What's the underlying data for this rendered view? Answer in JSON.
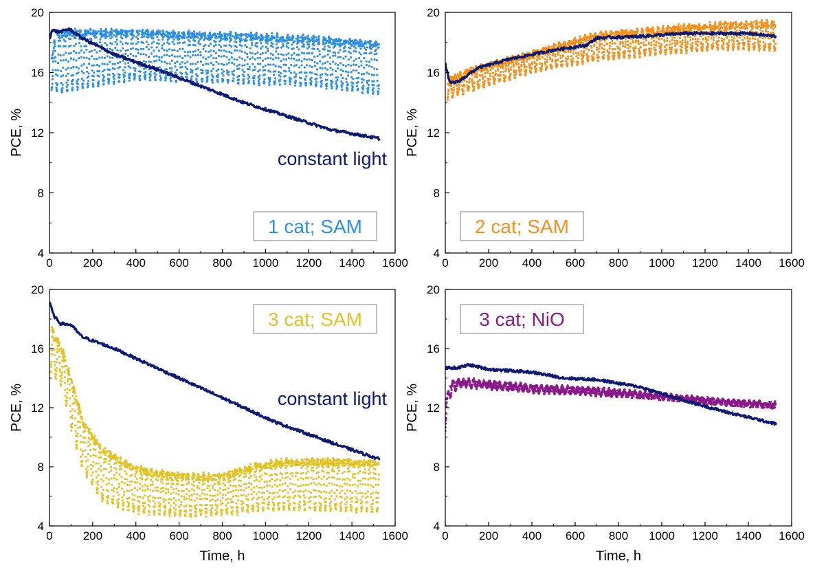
{
  "colors": {
    "constant": "#0d1a73",
    "cat1_sam": "#2d8fe6",
    "cat2_sam": "#f5901c",
    "cat3_sam": "#e3c227",
    "cat3_nio": "#8a1a8a",
    "axis": "#000000",
    "legend_border": "#808080"
  },
  "chart_data": [
    {
      "type": "scatter",
      "panel": "top-left",
      "xlabel": "",
      "ylabel": "PCE, %",
      "xlim": [
        0,
        1600
      ],
      "ylim": [
        4,
        20
      ],
      "xticks": [
        0,
        200,
        400,
        600,
        800,
        1000,
        1200,
        1400,
        1600
      ],
      "yticks": [
        4,
        8,
        12,
        16,
        20
      ],
      "legend_label": "1 cat; SAM",
      "legend_color": "cat1_sam",
      "legend_position": "bottom-right",
      "annotation": "constant light",
      "annotation_color": "constant",
      "cycling": {
        "color": "cat1_sam",
        "period_h": 24,
        "t_start": 10,
        "t_end": 1525,
        "upper": [
          [
            0,
            16.5
          ],
          [
            30,
            18.6
          ],
          [
            100,
            18.8
          ],
          [
            400,
            18.8
          ],
          [
            800,
            18.6
          ],
          [
            1200,
            18.4
          ],
          [
            1525,
            18.0
          ]
        ],
        "lower": [
          [
            0,
            14.5
          ],
          [
            50,
            14.0
          ],
          [
            200,
            14.5
          ],
          [
            400,
            15.0
          ],
          [
            800,
            14.8
          ],
          [
            1200,
            14.6
          ],
          [
            1525,
            14.0
          ]
        ]
      },
      "constant": {
        "color": "constant",
        "points": [
          [
            0,
            18.2
          ],
          [
            10,
            18.8
          ],
          [
            50,
            18.7
          ],
          [
            90,
            18.9
          ],
          [
            150,
            18.3
          ],
          [
            300,
            17.2
          ],
          [
            500,
            16.2
          ],
          [
            700,
            15.1
          ],
          [
            900,
            14.0
          ],
          [
            1100,
            13.1
          ],
          [
            1300,
            12.2
          ],
          [
            1530,
            11.6
          ]
        ]
      }
    },
    {
      "type": "scatter",
      "panel": "top-right",
      "xlabel": "",
      "ylabel": "PCE, %",
      "xlim": [
        0,
        1600
      ],
      "ylim": [
        4,
        20
      ],
      "xticks": [
        0,
        200,
        400,
        600,
        800,
        1000,
        1200,
        1400,
        1600
      ],
      "yticks": [
        4,
        8,
        12,
        16,
        20
      ],
      "legend_label": "2 cat; SAM",
      "legend_color": "cat2_sam",
      "legend_position": "bottom-left",
      "cycling": {
        "color": "cat2_sam",
        "period_h": 24,
        "t_start": 10,
        "t_end": 1525,
        "upper": [
          [
            0,
            15.5
          ],
          [
            100,
            16.2
          ],
          [
            400,
            17.4
          ],
          [
            700,
            18.6
          ],
          [
            1000,
            19.0
          ],
          [
            1300,
            19.3
          ],
          [
            1525,
            19.4
          ]
        ],
        "lower": [
          [
            0,
            14.0
          ],
          [
            100,
            14.5
          ],
          [
            400,
            15.8
          ],
          [
            700,
            16.5
          ],
          [
            1000,
            17.0
          ],
          [
            1300,
            17.3
          ],
          [
            1525,
            17.2
          ]
        ]
      },
      "constant": {
        "color": "constant",
        "points": [
          [
            0,
            16.6
          ],
          [
            20,
            15.3
          ],
          [
            60,
            15.4
          ],
          [
            150,
            16.3
          ],
          [
            300,
            16.9
          ],
          [
            500,
            17.5
          ],
          [
            650,
            17.8
          ],
          [
            700,
            18.3
          ],
          [
            900,
            18.4
          ],
          [
            1100,
            18.6
          ],
          [
            1300,
            18.6
          ],
          [
            1400,
            18.6
          ],
          [
            1530,
            18.4
          ]
        ]
      }
    },
    {
      "type": "scatter",
      "panel": "bottom-left",
      "xlabel": "Time, h",
      "ylabel": "PCE, %",
      "xlim": [
        0,
        1600
      ],
      "ylim": [
        4,
        20
      ],
      "xticks": [
        0,
        200,
        400,
        600,
        800,
        1000,
        1200,
        1400,
        1600
      ],
      "yticks": [
        4,
        8,
        12,
        16,
        20
      ],
      "legend_label": "3 cat; SAM",
      "legend_color": "cat3_sam",
      "legend_position": "top-right",
      "annotation": "constant light",
      "annotation_color": "constant",
      "cycling": {
        "color": "cat3_sam",
        "period_h": 24,
        "t_start": 5,
        "t_end": 1525,
        "upper": [
          [
            0,
            17.8
          ],
          [
            60,
            16.0
          ],
          [
            100,
            14.0
          ],
          [
            160,
            11.0
          ],
          [
            250,
            9.2
          ],
          [
            400,
            8.0
          ],
          [
            600,
            7.5
          ],
          [
            800,
            7.5
          ],
          [
            950,
            8.2
          ],
          [
            1100,
            8.5
          ],
          [
            1300,
            8.5
          ],
          [
            1525,
            8.4
          ]
        ],
        "lower": [
          [
            0,
            14.0
          ],
          [
            60,
            13.0
          ],
          [
            100,
            10.0
          ],
          [
            160,
            7.0
          ],
          [
            250,
            5.0
          ],
          [
            400,
            4.4
          ],
          [
            600,
            4.2
          ],
          [
            800,
            4.3
          ],
          [
            1000,
            4.5
          ],
          [
            1200,
            4.5
          ],
          [
            1525,
            4.4
          ]
        ]
      },
      "constant": {
        "color": "constant",
        "points": [
          [
            0,
            19.2
          ],
          [
            20,
            18.2
          ],
          [
            50,
            17.7
          ],
          [
            100,
            17.6
          ],
          [
            150,
            16.8
          ],
          [
            300,
            16.0
          ],
          [
            450,
            15.0
          ],
          [
            600,
            14.0
          ],
          [
            750,
            13.0
          ],
          [
            900,
            12.0
          ],
          [
            1050,
            11.0
          ],
          [
            1200,
            10.2
          ],
          [
            1350,
            9.4
          ],
          [
            1530,
            8.5
          ]
        ]
      }
    },
    {
      "type": "scatter",
      "panel": "bottom-right",
      "xlabel": "Time, h",
      "ylabel": "PCE, %",
      "xlim": [
        0,
        1600
      ],
      "ylim": [
        4,
        20
      ],
      "xticks": [
        0,
        200,
        400,
        600,
        800,
        1000,
        1200,
        1400,
        1600
      ],
      "yticks": [
        4,
        8,
        12,
        16,
        20
      ],
      "legend_label": "3 cat; NiO",
      "legend_color": "cat3_nio",
      "legend_position": "top-left",
      "cycling": {
        "color": "cat3_nio",
        "period_h": 24,
        "t_start": 0,
        "t_end": 1525,
        "upper": [
          [
            0,
            12.5
          ],
          [
            30,
            13.8
          ],
          [
            100,
            13.9
          ],
          [
            400,
            13.5
          ],
          [
            700,
            13.3
          ],
          [
            1000,
            12.9
          ],
          [
            1300,
            12.5
          ],
          [
            1525,
            12.3
          ]
        ],
        "lower": [
          [
            0,
            10.2
          ],
          [
            20,
            12.5
          ],
          [
            60,
            13.4
          ],
          [
            400,
            13.0
          ],
          [
            700,
            12.8
          ],
          [
            1000,
            12.6
          ],
          [
            1300,
            12.2
          ],
          [
            1525,
            12.0
          ]
        ]
      },
      "constant": {
        "color": "constant",
        "points": [
          [
            0,
            14.7
          ],
          [
            60,
            14.7
          ],
          [
            110,
            14.9
          ],
          [
            200,
            14.6
          ],
          [
            400,
            14.4
          ],
          [
            550,
            14.0
          ],
          [
            700,
            13.9
          ],
          [
            900,
            13.4
          ],
          [
            1100,
            12.5
          ],
          [
            1300,
            11.7
          ],
          [
            1530,
            10.9
          ]
        ]
      }
    }
  ]
}
